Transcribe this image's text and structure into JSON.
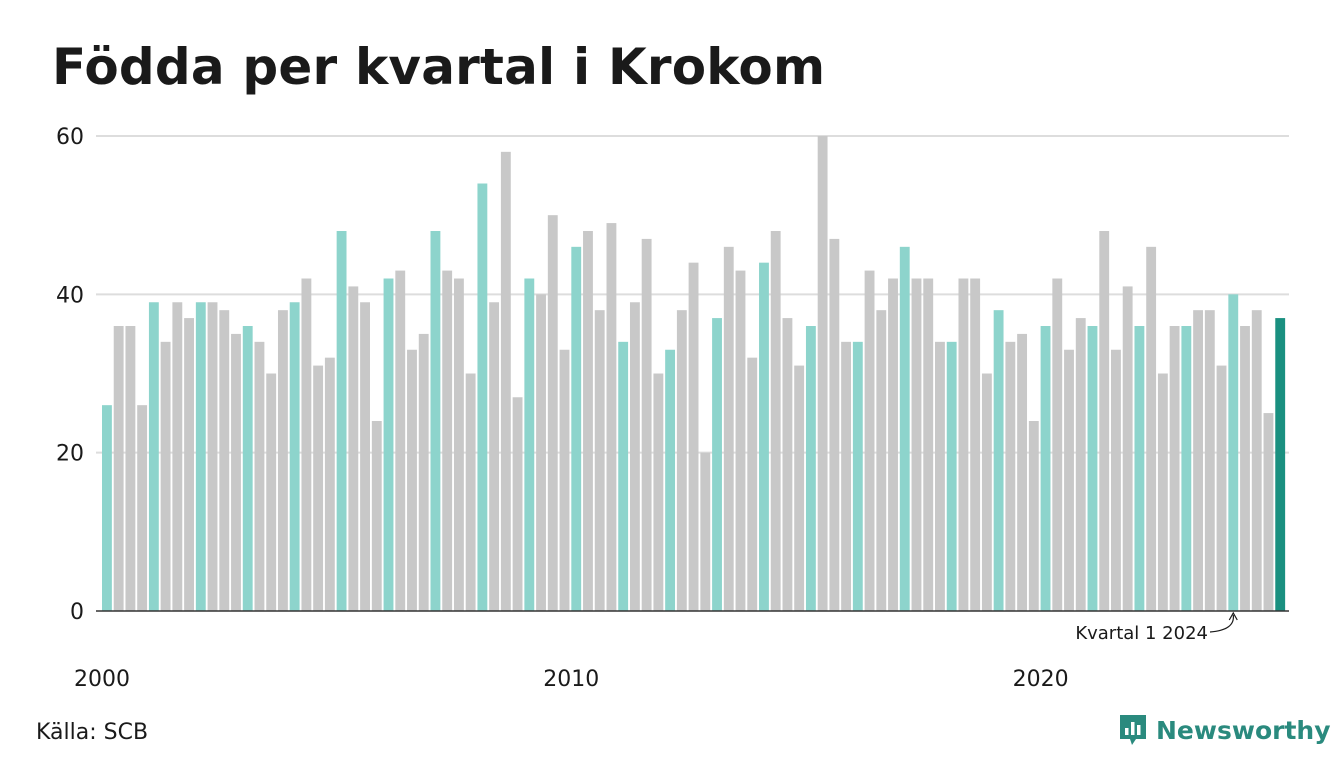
{
  "title": "Födda per kvartal i Krokom",
  "source": "Källa: SCB",
  "brand": {
    "name": "Newsworthy",
    "icon": "bar-chart-logo-icon",
    "color": "#2a8a7e"
  },
  "colors": {
    "q1": "#8dd4cc",
    "other": "#c8c8c8",
    "latest": "#1a9080",
    "grid": "#dddddd",
    "axis": "#333333"
  },
  "chart_data": {
    "type": "bar",
    "title": "Födda per kvartal i Krokom",
    "xlabel": "",
    "ylabel": "",
    "ylim": [
      0,
      60
    ],
    "yticks": [
      "0",
      "20",
      "40",
      "60"
    ],
    "xticks": [
      "2000",
      "2010",
      "2020"
    ],
    "x_start": "2000 Q1",
    "frequency": "quarterly",
    "highlight": "Q1 bars in teal; latest quarter in dark teal",
    "grid": true,
    "values": [
      26,
      36,
      36,
      26,
      39,
      34,
      39,
      37,
      39,
      39,
      38,
      35,
      36,
      34,
      30,
      38,
      39,
      42,
      31,
      32,
      48,
      41,
      39,
      24,
      42,
      43,
      33,
      35,
      48,
      43,
      42,
      30,
      54,
      39,
      58,
      27,
      42,
      40,
      50,
      33,
      46,
      48,
      38,
      49,
      34,
      39,
      47,
      30,
      33,
      38,
      44,
      20,
      37,
      46,
      43,
      32,
      44,
      48,
      37,
      31,
      36,
      60,
      47,
      34,
      34,
      43,
      38,
      42,
      46,
      42,
      42,
      34,
      34,
      42,
      42,
      30,
      38,
      34,
      35,
      24,
      36,
      42,
      33,
      37,
      36,
      48,
      33,
      41,
      36,
      46,
      30,
      36,
      36,
      38,
      38,
      31,
      40,
      36,
      38,
      25,
      37
    ],
    "annotation": {
      "label": "Kvartal 1 2024"
    }
  }
}
